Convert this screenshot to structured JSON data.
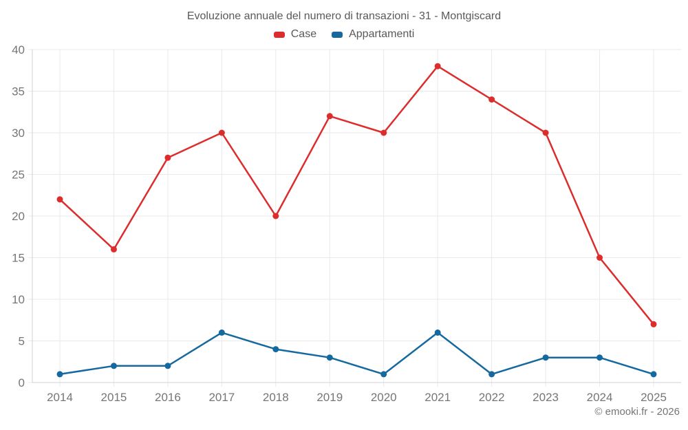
{
  "title": "Evoluzione annuale del numero di transazioni - 31 - Montgiscard",
  "legend": [
    {
      "label": "Case",
      "color": "#dd2c2c"
    },
    {
      "label": "Appartamenti",
      "color": "#15699e"
    }
  ],
  "footer": "© emooki.fr - 2026",
  "style": {
    "grid_color": "#e9e9e9",
    "axis_color": "#d0d0d0",
    "tick_label_color": "#757575",
    "title_color": "#58595b",
    "background": "#ffffff"
  },
  "chart_data": {
    "type": "line",
    "title": "Evoluzione annuale del numero di transazioni - 31 - Montgiscard",
    "categories": [
      "2014",
      "2015",
      "2016",
      "2017",
      "2018",
      "2019",
      "2020",
      "2021",
      "2022",
      "2023",
      "2024",
      "2025"
    ],
    "series": [
      {
        "name": "Case",
        "color": "#dd2c2c",
        "values": [
          22,
          16,
          27,
          30,
          20,
          32,
          30,
          38,
          34,
          30,
          15,
          7
        ]
      },
      {
        "name": "Appartamenti",
        "color": "#15699e",
        "values": [
          1,
          2,
          2,
          6,
          4,
          3,
          1,
          6,
          1,
          3,
          3,
          1
        ]
      }
    ],
    "xlabel": "",
    "ylabel": "",
    "ylim": [
      0,
      40
    ],
    "ytick_step": 5,
    "grid": true,
    "legend_position": "top",
    "marker": "circle"
  }
}
